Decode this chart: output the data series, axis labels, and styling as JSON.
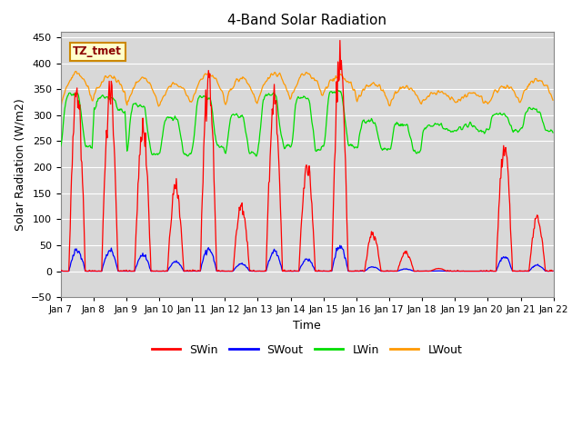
{
  "title": "4-Band Solar Radiation",
  "xlabel": "Time",
  "ylabel": "Solar Radiation (W/m2)",
  "ylim": [
    -50,
    460
  ],
  "annotation": "TZ_tmet",
  "legend_labels": [
    "SWin",
    "SWout",
    "LWin",
    "LWout"
  ],
  "legend_colors": [
    "#ff0000",
    "#0000ff",
    "#00dd00",
    "#ff9900"
  ],
  "background_color": "#d8d8d8",
  "grid_color": "#ffffff",
  "num_days": 15,
  "dt_hours": 0.5,
  "tick_labels": [
    "Jan 7",
    "Jan 8",
    "Jan 9",
    "Jan 10",
    "Jan 11",
    "Jan 12",
    "Jan 13",
    "Jan 14",
    "Jan 15",
    "Jan 16",
    "Jan 17",
    "Jan 18",
    "Jan 19",
    "Jan 20",
    "Jan 21",
    "Jan 22"
  ],
  "SWin_day_peaks": [
    350,
    350,
    270,
    160,
    370,
    130,
    330,
    200,
    415,
    70,
    35,
    5,
    0,
    240,
    100
  ],
  "LWin_day_high": [
    340,
    335,
    320,
    295,
    335,
    300,
    340,
    335,
    345,
    290,
    285,
    280,
    280,
    305,
    310
  ],
  "LWin_day_low": [
    240,
    310,
    225,
    225,
    240,
    225,
    240,
    235,
    240,
    235,
    230,
    270,
    270,
    270,
    270
  ],
  "LWout_day_peak": [
    380,
    375,
    370,
    360,
    380,
    370,
    380,
    380,
    375,
    360,
    355,
    345,
    340,
    355,
    370
  ],
  "LWout_day_base": [
    315,
    335,
    310,
    315,
    325,
    315,
    325,
    330,
    340,
    320,
    315,
    325,
    320,
    320,
    325
  ]
}
